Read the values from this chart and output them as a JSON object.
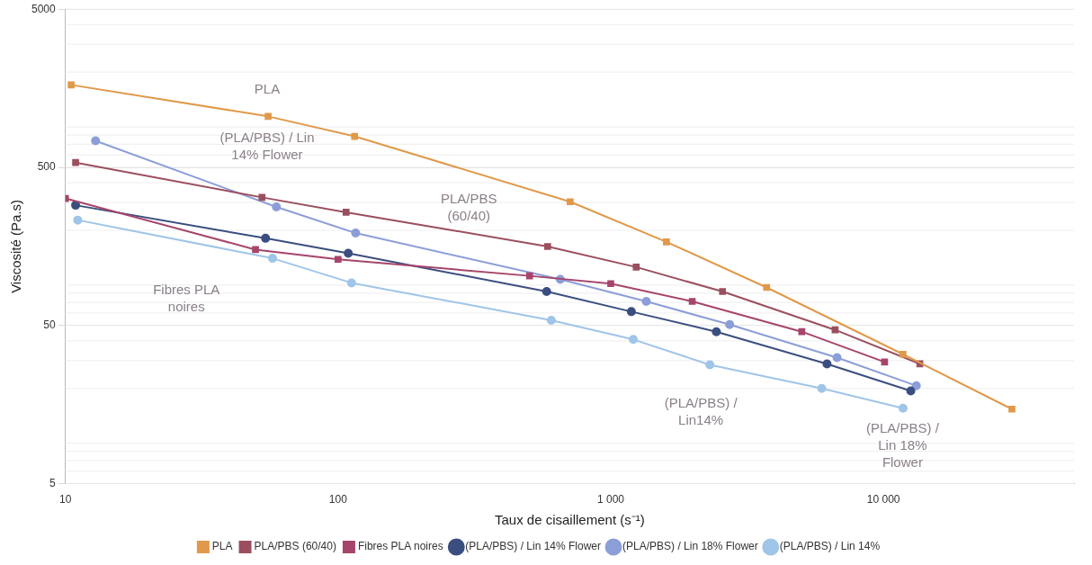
{
  "chart_data": {
    "type": "line",
    "xlabel": "Taux de cisaillement (s⁻¹)",
    "ylabel": "Viscosité (Pa.s)",
    "log": "xy",
    "grid": "y",
    "legend": "bottom",
    "line_style": "solid",
    "xlim": [
      10,
      50000
    ],
    "xticks": [
      10,
      100,
      {
        "value": 1000,
        "label": "1 000"
      },
      {
        "value": 10000,
        "label": "10 000"
      }
    ],
    "ylim": [
      5,
      5000
    ],
    "yticks": [
      5,
      50,
      500,
      5000
    ],
    "series": [
      {
        "name": "PLA",
        "color": "#e0994a",
        "marker": "square",
        "x": [
          10.5,
          55.4,
          115,
          710,
          1600,
          3730,
          11800,
          29600
        ],
        "values": [
          1660,
          1050,
          785,
          303,
          169,
          87,
          32.9,
          14.8
        ]
      },
      {
        "name": "PLA/PBS (60/40)",
        "color": "#9b4f5e",
        "marker": "square",
        "x": [
          10.9,
          52.6,
          107,
          587,
          1240,
          2570,
          6650,
          13600
        ],
        "values": [
          536,
          323,
          260,
          158,
          117,
          82,
          46.9,
          28.6
        ]
      },
      {
        "name": "Fibres PLA noires",
        "color": "#a6456b",
        "marker": "square",
        "x": [
          10,
          49.8,
          100,
          504,
          1000,
          1990,
          5020,
          10100
        ],
        "values": [
          318,
          151,
          131,
          103,
          92,
          71,
          45.7,
          29.4
        ]
      },
      {
        "name": "(PLA/PBS) / Lin 14% Flower",
        "color": "#3b4e80",
        "marker": "circle",
        "x": [
          10.9,
          54.2,
          109,
          582,
          1190,
          2440,
          6210,
          12600
        ],
        "values": [
          288,
          178,
          143,
          82,
          61.2,
          45.7,
          28.6,
          19.3
        ]
      },
      {
        "name": "(PLA/PBS) / Lin 18% Flower",
        "color": "#8c9ed8",
        "marker": "circle",
        "x": [
          12.9,
          59.4,
          116,
          653,
          1350,
          2730,
          6760,
          13200
        ],
        "values": [
          736,
          281,
          192,
          98,
          71,
          50.7,
          31.3,
          20.8
        ]
      },
      {
        "name": "(PLA/PBS) / Lin 14%",
        "color": "#9fc5e8",
        "marker": "circle",
        "x": [
          11.1,
          57.5,
          112,
          605,
          1210,
          2310,
          5940,
          11800
        ],
        "values": [
          232,
          133,
          93,
          54,
          40.8,
          28.2,
          20.0,
          15.0
        ]
      }
    ],
    "annotations": [
      "PLA",
      "(PLA/PBS) / Lin\n14% Flower",
      "PLA/PBS\n(60/40)",
      "Fibres PLA\nnoires",
      "(PLA/PBS) /\nLin14%",
      "(PLA/PBS) /\nLin 18%\nFlower"
    ]
  }
}
